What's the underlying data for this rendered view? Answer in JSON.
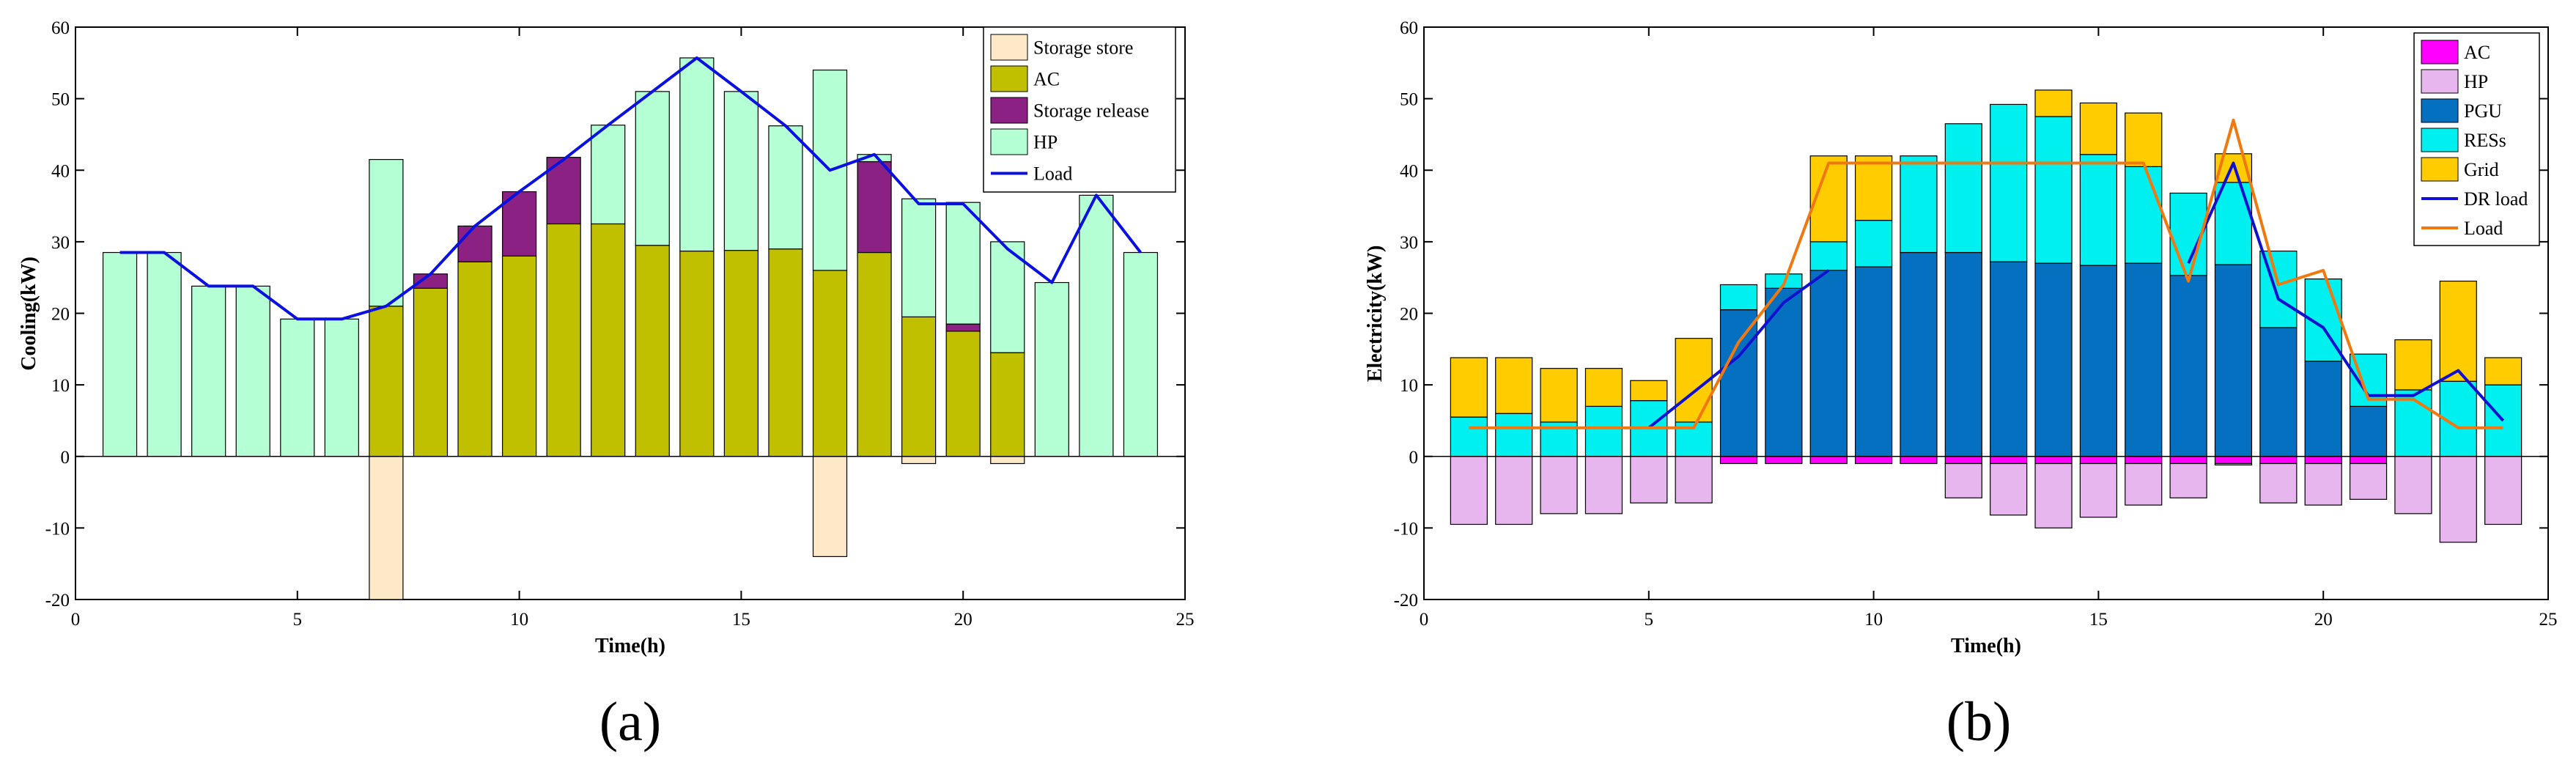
{
  "chart_data": [
    {
      "type": "bar",
      "panel_label": "(a)",
      "xlabel": "Time(h)",
      "ylabel": "Cooling(kW)",
      "xlim": [
        0,
        25
      ],
      "ylim": [
        -20,
        60
      ],
      "xticks": [
        "0",
        "5",
        "10",
        "15",
        "20",
        "25"
      ],
      "yticks": [
        "-20",
        "-10",
        "0",
        "10",
        "20",
        "30",
        "40",
        "50",
        "60"
      ],
      "categories": [
        1,
        2,
        3,
        4,
        5,
        6,
        7,
        8,
        9,
        10,
        11,
        12,
        13,
        14,
        15,
        16,
        17,
        18,
        19,
        20,
        21,
        22,
        23,
        24
      ],
      "legend": [
        "Storage store",
        "AC",
        "Storage release",
        "HP",
        "Load"
      ],
      "series": [
        {
          "name": "Storage store",
          "color": "#fde8c8",
          "values": [
            0,
            0,
            0,
            0,
            0,
            0,
            -20,
            0,
            0,
            0,
            0,
            0,
            0,
            0,
            0,
            0,
            -14,
            0,
            -1,
            0,
            -1,
            0,
            0,
            0
          ]
        },
        {
          "name": "AC",
          "color": "#c0bf00",
          "values": [
            0,
            0,
            0,
            0,
            0,
            0,
            21,
            23.5,
            27.2,
            28,
            32.5,
            32.5,
            29.5,
            28.7,
            28.8,
            29,
            26,
            28.5,
            19.5,
            17.5,
            14.5,
            0,
            0,
            0
          ]
        },
        {
          "name": "Storage release",
          "color": "#8b2283",
          "values": [
            0,
            0,
            0,
            0,
            0,
            0,
            0,
            2,
            5,
            9,
            9.3,
            0,
            0,
            0,
            0,
            0,
            0,
            12.7,
            0,
            1,
            0,
            0,
            0,
            0
          ]
        },
        {
          "name": "HP",
          "color": "#b5ffd5",
          "values": [
            28.5,
            28.5,
            23.8,
            23.8,
            19.2,
            19.2,
            20.5,
            0,
            0,
            0,
            0,
            13.8,
            21.5,
            27,
            22.2,
            17.2,
            28,
            1,
            16.5,
            17,
            15.5,
            24.3,
            36.5,
            28.5
          ]
        },
        {
          "name": "Load",
          "color": "#0a10e0",
          "type": "line",
          "values": [
            28.5,
            28.5,
            23.8,
            23.8,
            19.2,
            19.2,
            21,
            25.5,
            32.2,
            37,
            41.5,
            46.3,
            51,
            55.7,
            51,
            46.2,
            40,
            42.2,
            35.3,
            35.3,
            29,
            24.3,
            36.5,
            28.5
          ]
        }
      ]
    },
    {
      "type": "bar",
      "panel_label": "(b)",
      "xlabel": "Time(h)",
      "ylabel": "Electricity(kW)",
      "xlim": [
        0,
        25
      ],
      "ylim": [
        -20,
        60
      ],
      "xticks": [
        "0",
        "5",
        "10",
        "15",
        "20",
        "25"
      ],
      "yticks": [
        "-20",
        "-10",
        "0",
        "10",
        "20",
        "30",
        "40",
        "50",
        "60"
      ],
      "categories": [
        1,
        2,
        3,
        4,
        5,
        6,
        7,
        8,
        9,
        10,
        11,
        12,
        13,
        14,
        15,
        16,
        17,
        18,
        19,
        20,
        21,
        22,
        23,
        24
      ],
      "legend": [
        "AC",
        "HP",
        "PGU",
        "RESs",
        "Grid",
        "DR load",
        "Load"
      ],
      "series": [
        {
          "name": "AC",
          "color": "#ff00ff",
          "values": [
            0,
            0,
            0,
            0,
            0,
            0,
            -1,
            -1,
            -1,
            -1,
            -1,
            -1,
            -1,
            -1,
            -1,
            -1,
            -1,
            -1,
            -1,
            -1,
            -1,
            0,
            0,
            0
          ]
        },
        {
          "name": "HP",
          "color": "#e8b6ee",
          "values": [
            -9.5,
            -9.5,
            -8,
            -8,
            -6.5,
            -6.5,
            0,
            0,
            0,
            0,
            0,
            -4.8,
            -7.2,
            -9,
            -7.5,
            -5.8,
            -4.8,
            -0.2,
            -5.5,
            -5.8,
            -5,
            -8,
            -12,
            -9.5
          ]
        },
        {
          "name": "PGU",
          "color": "#0570c0",
          "values": [
            0,
            0,
            0,
            0,
            0,
            0,
            20.5,
            23.5,
            26,
            26.5,
            28.5,
            28.5,
            27.2,
            27,
            26.7,
            27,
            25.3,
            26.8,
            18,
            13.3,
            7,
            0,
            0,
            0
          ]
        },
        {
          "name": "RESs",
          "color": "#00f0f0",
          "values": [
            5.5,
            6,
            4.8,
            7,
            7.8,
            4.8,
            3.5,
            2,
            4,
            6.5,
            13.5,
            18,
            22,
            20.5,
            15.5,
            13.5,
            11.5,
            11.5,
            10.7,
            11.5,
            7.3,
            9.3,
            10.5,
            10
          ]
        },
        {
          "name": "Grid",
          "color": "#ffcc00",
          "values": [
            8.3,
            7.8,
            7.5,
            5.3,
            2.8,
            11.7,
            0,
            0,
            12,
            9,
            0,
            0,
            0,
            3.7,
            7.2,
            7.5,
            0,
            4,
            0,
            0,
            0,
            7,
            14,
            3.8
          ]
        },
        {
          "name": "DR load",
          "color": "#1010d0",
          "type": "line",
          "values": [
            null,
            null,
            null,
            null,
            4,
            9,
            14,
            21.5,
            26,
            null,
            null,
            null,
            null,
            null,
            null,
            null,
            27,
            41,
            22,
            18,
            8.5,
            8.5,
            12,
            5
          ]
        },
        {
          "name": "Load",
          "color": "#f07810",
          "type": "line",
          "values": [
            4,
            4,
            4,
            4,
            4,
            4,
            16,
            24,
            41,
            41,
            41,
            41,
            41,
            41,
            41,
            41,
            24.5,
            47,
            24,
            26,
            8,
            8,
            4,
            4
          ]
        }
      ]
    }
  ]
}
